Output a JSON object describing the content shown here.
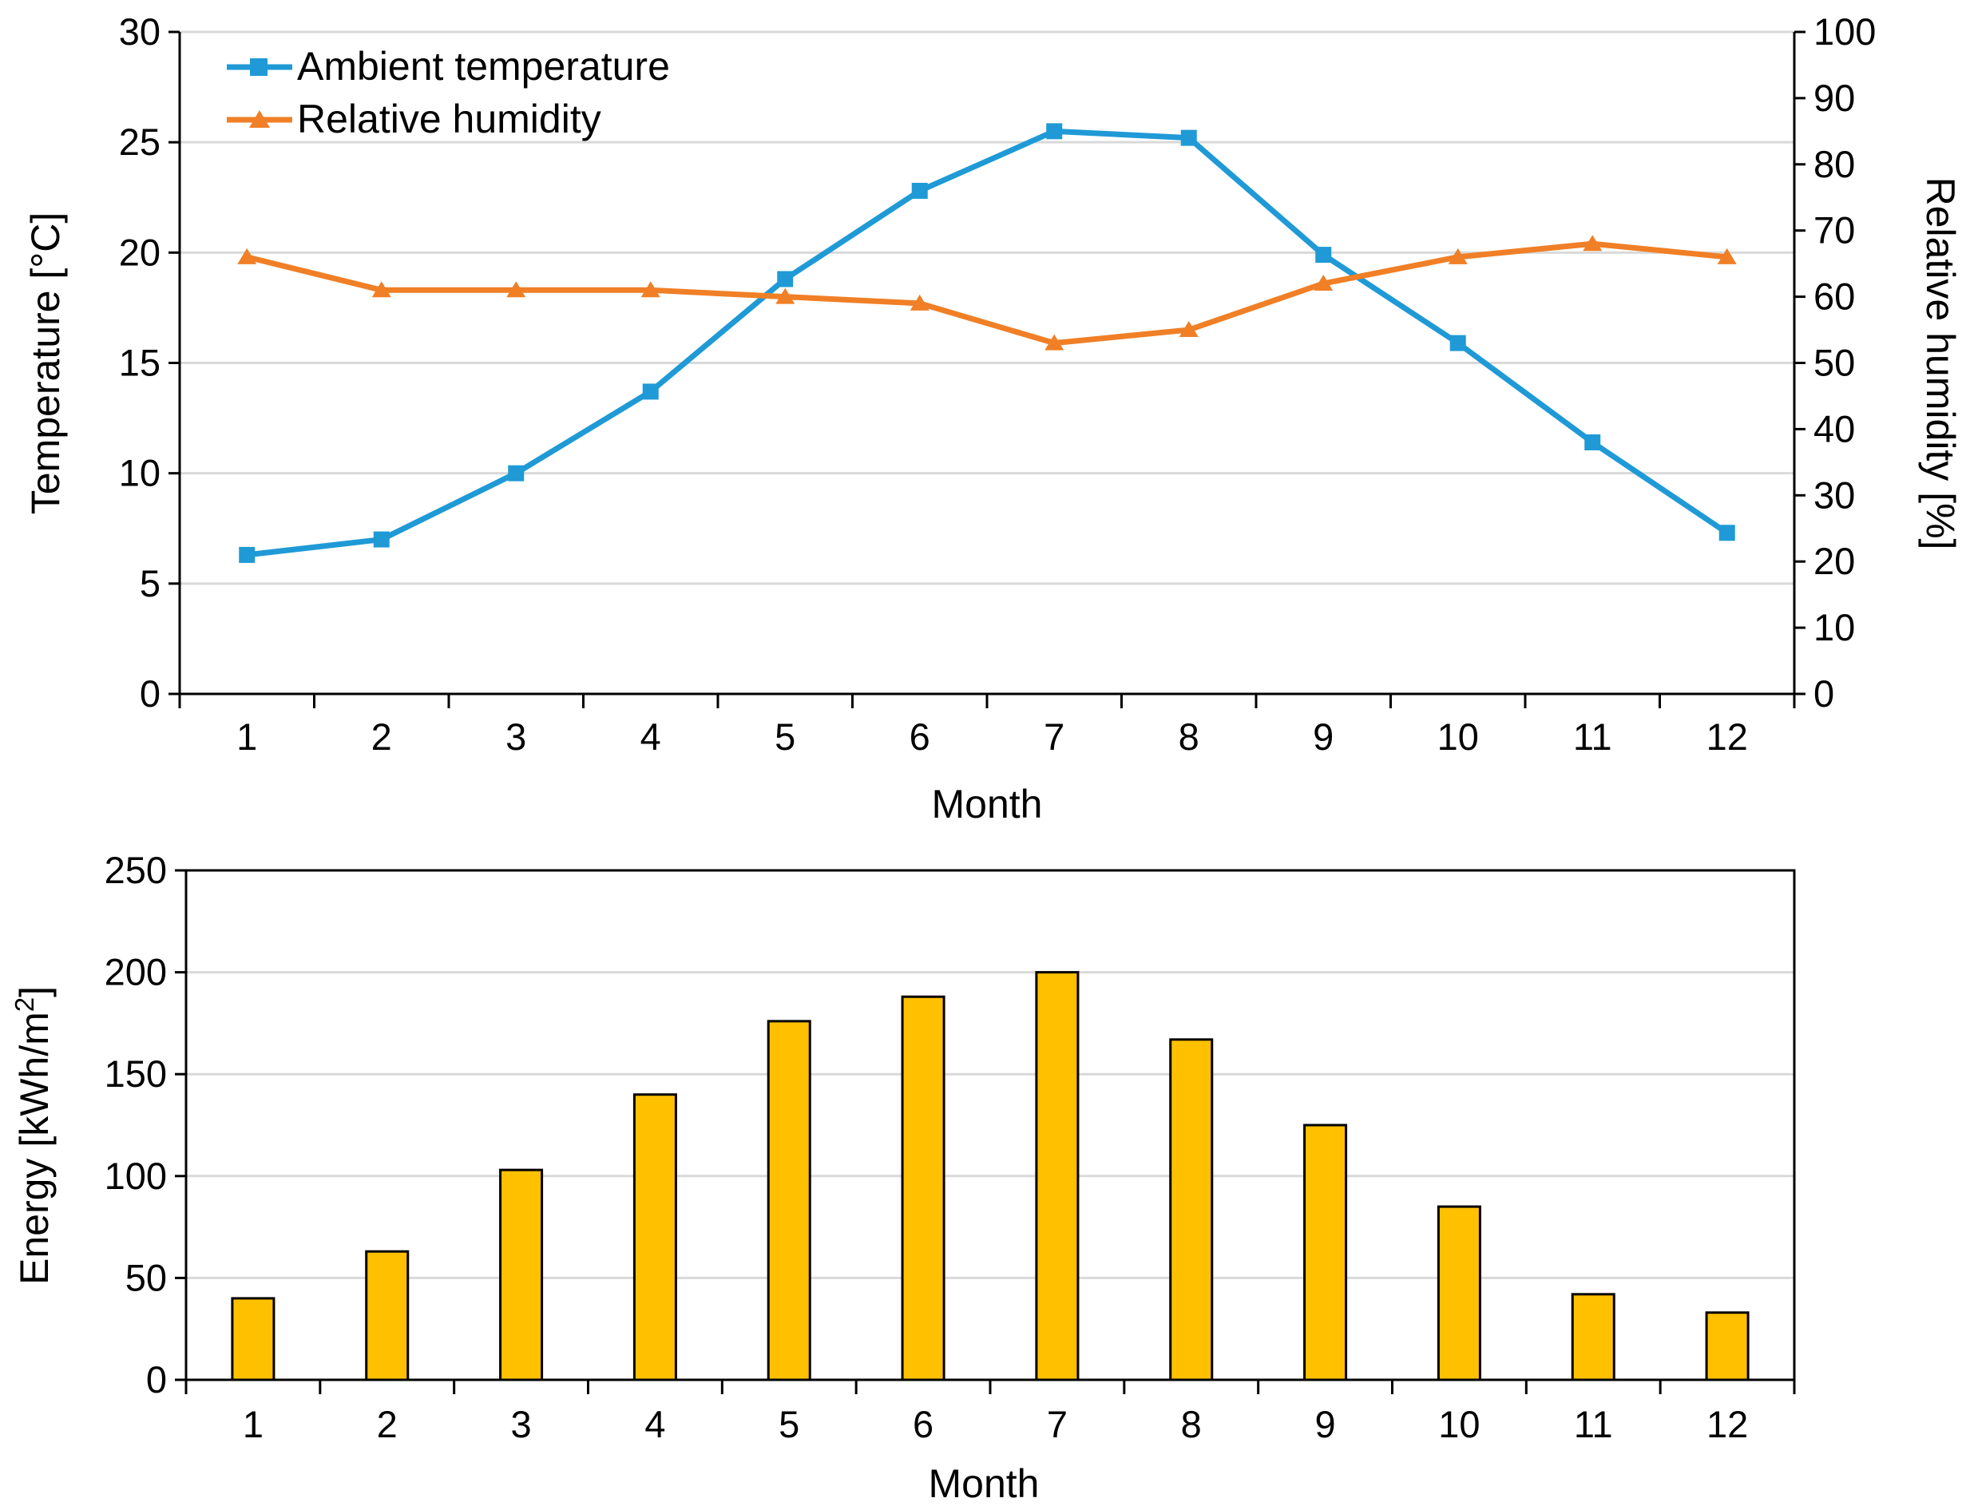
{
  "chart_data": [
    {
      "type": "line",
      "categories": [
        "1",
        "2",
        "3",
        "4",
        "5",
        "6",
        "7",
        "8",
        "9",
        "10",
        "11",
        "12"
      ],
      "xlabel": "Month",
      "ylabel": "Temperature [°C]",
      "ylabel_right": "Relative humidity [%]",
      "ylim": [
        0,
        30
      ],
      "yticks": [
        "0",
        "5",
        "10",
        "15",
        "20",
        "25",
        "30"
      ],
      "ylim_right": [
        0,
        100
      ],
      "yticks_right": [
        "0",
        "10",
        "20",
        "30",
        "40",
        "50",
        "60",
        "70",
        "80",
        "90",
        "100"
      ],
      "grid": true,
      "legend_position": "top-left",
      "series": [
        {
          "name": "Ambient temperature",
          "axis": "left",
          "marker": "square",
          "color": "#1f9ad6",
          "values": [
            6.3,
            7.0,
            10.0,
            13.7,
            18.8,
            22.8,
            25.5,
            25.2,
            19.9,
            15.9,
            11.4,
            7.3
          ]
        },
        {
          "name": "Relative humidity",
          "axis": "right",
          "marker": "triangle",
          "color": "#f07f26",
          "values": [
            66,
            61,
            61,
            61,
            60,
            59,
            53,
            55,
            62,
            66,
            68,
            66
          ]
        }
      ]
    },
    {
      "type": "bar",
      "categories": [
        "1",
        "2",
        "3",
        "4",
        "5",
        "6",
        "7",
        "8",
        "9",
        "10",
        "11",
        "12"
      ],
      "xlabel": "Month",
      "ylabel_prefix": "Energy [kWh/m",
      "ylabel_superscript": "2",
      "ylabel_suffix": "]",
      "ylim": [
        0,
        250
      ],
      "yticks": [
        "0",
        "50",
        "100",
        "150",
        "200",
        "250"
      ],
      "grid": true,
      "bar_color": "#ffc000",
      "bar_edge_color": "#000000",
      "values": [
        40,
        63,
        103,
        140,
        176,
        188,
        200,
        167,
        125,
        85,
        42,
        33
      ]
    }
  ]
}
